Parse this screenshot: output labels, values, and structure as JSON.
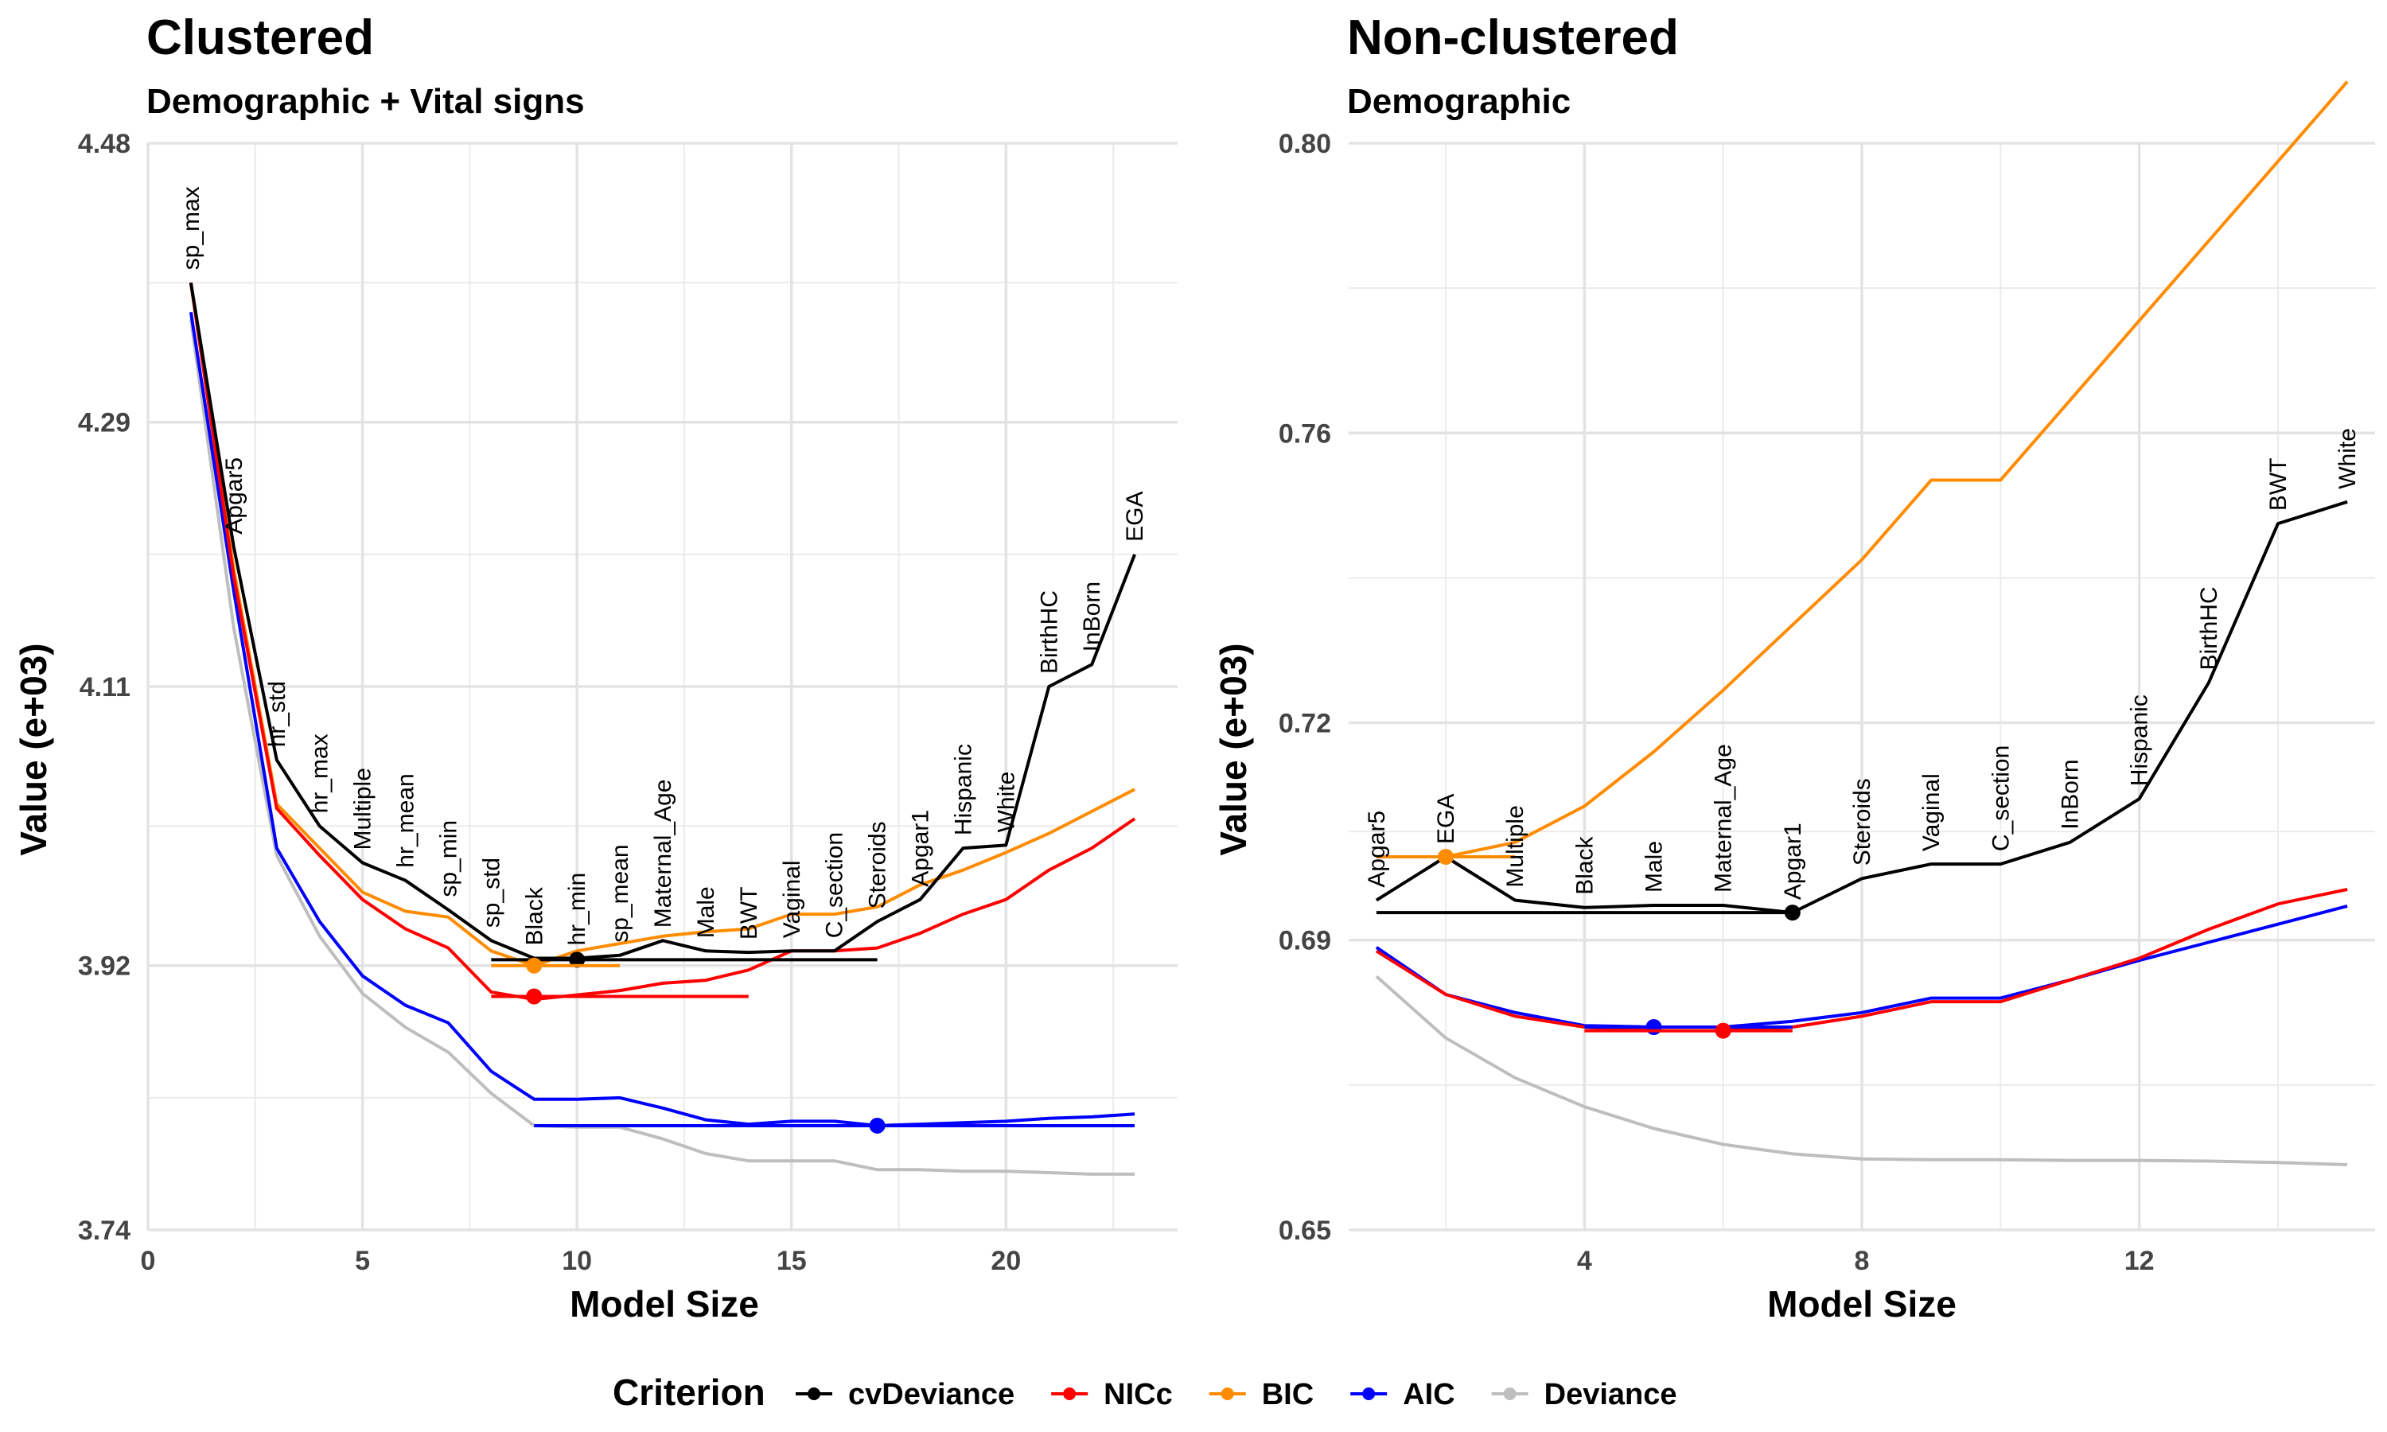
{
  "legend": {
    "title": "Criterion",
    "items": [
      {
        "name": "cvDeviance",
        "color": "#000000"
      },
      {
        "name": "NICc",
        "color": "#ff0000"
      },
      {
        "name": "BIC",
        "color": "#ff8c00"
      },
      {
        "name": "AIC",
        "color": "#0000ff"
      },
      {
        "name": "Deviance",
        "color": "#bebebe"
      }
    ]
  },
  "chart_data": [
    {
      "type": "line",
      "title": "Clustered",
      "subtitle": "Demographic + Vital signs",
      "xlabel": "Model Size",
      "ylabel": "Value (e+03)",
      "xlim": [
        0,
        24
      ],
      "ylim": [
        3.74,
        4.48
      ],
      "xticks": [
        0,
        5,
        10,
        15,
        20
      ],
      "yticks": [
        "3.74",
        "3.92",
        "4.11",
        "4.29",
        "4.48"
      ],
      "grid": true,
      "x": [
        1,
        2,
        3,
        4,
        5,
        6,
        7,
        8,
        9,
        10,
        11,
        12,
        13,
        14,
        15,
        16,
        17,
        18,
        19,
        20,
        21,
        22,
        23
      ],
      "series": [
        {
          "name": "cvDeviance",
          "color": "#000000",
          "values": [
            4.385,
            4.205,
            4.06,
            4.015,
            3.99,
            3.978,
            3.958,
            3.937,
            3.925,
            3.925,
            3.927,
            3.937,
            3.93,
            3.929,
            3.93,
            3.93,
            3.95,
            3.965,
            4.0,
            4.002,
            4.11,
            4.125,
            4.2
          ]
        },
        {
          "name": "NICc",
          "color": "#ff0000",
          "values": [
            4.385,
            4.185,
            4.027,
            3.995,
            3.965,
            3.945,
            3.932,
            3.902,
            3.897,
            3.9,
            3.903,
            3.908,
            3.91,
            3.917,
            3.93,
            3.93,
            3.932,
            3.942,
            3.955,
            3.965,
            3.985,
            4.0,
            4.02
          ]
        },
        {
          "name": "BIC",
          "color": "#ff8c00",
          "values": [
            4.385,
            4.19,
            4.03,
            4.0,
            3.97,
            3.957,
            3.953,
            3.93,
            3.92,
            3.93,
            3.935,
            3.94,
            3.943,
            3.945,
            3.955,
            3.955,
            3.96,
            3.975,
            3.985,
            3.997,
            4.01,
            4.025,
            4.04
          ]
        },
        {
          "name": "AIC",
          "color": "#0000ff",
          "values": [
            4.365,
            4.175,
            4.0,
            3.95,
            3.913,
            3.893,
            3.881,
            3.848,
            3.829,
            3.829,
            3.83,
            3.823,
            3.815,
            3.812,
            3.814,
            3.814,
            3.811,
            3.812,
            3.813,
            3.814,
            3.816,
            3.817,
            3.819
          ]
        },
        {
          "name": "Deviance",
          "color": "#bebebe",
          "values": [
            4.36,
            4.15,
            3.995,
            3.94,
            3.901,
            3.878,
            3.861,
            3.833,
            3.811,
            3.81,
            3.81,
            3.802,
            3.792,
            3.787,
            3.787,
            3.787,
            3.781,
            3.781,
            3.78,
            3.78,
            3.779,
            3.778,
            3.778
          ]
        }
      ],
      "hlines": [
        {
          "series": "cvDeviance",
          "x0": 8,
          "x1": 17,
          "y": 3.924,
          "dot_x": 10
        },
        {
          "series": "NICc",
          "x0": 8,
          "x1": 14,
          "y": 3.899,
          "dot_x": 9
        },
        {
          "series": "BIC",
          "x0": 8,
          "x1": 11,
          "y": 3.92,
          "dot_x": 9
        },
        {
          "series": "AIC",
          "x0": 9,
          "x1": 23,
          "y": 3.811,
          "dot_x": 17
        }
      ],
      "variables": [
        "sp_max",
        "Apgar5",
        "hr_std",
        "hr_max",
        "Multiple",
        "hr_mean",
        "sp_min",
        "sp_std",
        "Black",
        "hr_min",
        "sp_mean",
        "Maternal_Age",
        "Male",
        "BWT",
        "Vaginal",
        "C_section",
        "Steroids",
        "Apgar1",
        "Hispanic",
        "White",
        "BirthHC",
        "InBorn",
        "EGA"
      ]
    },
    {
      "type": "line",
      "title": "Non-clustered",
      "subtitle": "Demographic",
      "xlabel": "Model Size",
      "ylabel": "Value (e+03)",
      "xlim": [
        0.6,
        15.4
      ],
      "ylim": [
        0.65,
        0.8
      ],
      "xticks": [
        4,
        8,
        12
      ],
      "yticks": [
        "0.65",
        "0.69",
        "0.72",
        "0.76",
        "0.80"
      ],
      "grid": true,
      "x": [
        1,
        2,
        3,
        4,
        5,
        6,
        7,
        8,
        9,
        10,
        11,
        12,
        13,
        14,
        15
      ],
      "series": [
        {
          "name": "cvDeviance",
          "color": "#000000",
          "values": [
            0.6955,
            0.7015,
            0.6955,
            0.6945,
            0.6948,
            0.6948,
            0.6938,
            0.6985,
            0.7005,
            0.7005,
            0.7035,
            0.7095,
            0.7255,
            0.7475,
            0.7505
          ]
        },
        {
          "name": "NICc",
          "color": "#ff0000",
          "values": [
            0.6885,
            0.6825,
            0.6795,
            0.678,
            0.6775,
            0.6775,
            0.678,
            0.6795,
            0.6815,
            0.6815,
            0.6845,
            0.6875,
            0.6915,
            0.695,
            0.697
          ]
        },
        {
          "name": "BIC",
          "color": "#ff8c00",
          "values": [
            0.7015,
            0.7015,
            0.7035,
            0.7085,
            0.716,
            0.7245,
            0.7335,
            0.7425,
            0.7535,
            0.7535,
            0.7645,
            0.7755,
            0.7865,
            0.7975,
            0.8085
          ]
        },
        {
          "name": "AIC",
          "color": "#0000ff",
          "values": [
            0.689,
            0.6825,
            0.68,
            0.6782,
            0.678,
            0.678,
            0.6788,
            0.68,
            0.682,
            0.682,
            0.6845,
            0.6872,
            0.6897,
            0.6922,
            0.6947
          ]
        },
        {
          "name": "Deviance",
          "color": "#bebebe",
          "values": [
            0.685,
            0.6765,
            0.671,
            0.667,
            0.664,
            0.6618,
            0.6605,
            0.6598,
            0.6597,
            0.6597,
            0.6596,
            0.6596,
            0.6595,
            0.6593,
            0.659
          ]
        }
      ],
      "hlines": [
        {
          "series": "cvDeviance",
          "x0": 1,
          "x1": 7,
          "y": 0.6938,
          "dot_x": 7
        },
        {
          "series": "BIC",
          "x0": 1,
          "x1": 3,
          "y": 0.7015,
          "dot_x": 2
        },
        {
          "series": "AIC",
          "x0": 4,
          "x1": 7,
          "y": 0.678,
          "dot_x": 5
        },
        {
          "series": "NICc",
          "x0": 4,
          "x1": 7,
          "y": 0.6775,
          "dot_x": 6
        }
      ],
      "variables": [
        "Apgar5",
        "EGA",
        "Multiple",
        "Black",
        "Male",
        "Maternal_Age",
        "Apgar1",
        "Steroids",
        "Vaginal",
        "C_section",
        "InBorn",
        "Hispanic",
        "BirthHC",
        "BWT",
        "White"
      ]
    }
  ]
}
